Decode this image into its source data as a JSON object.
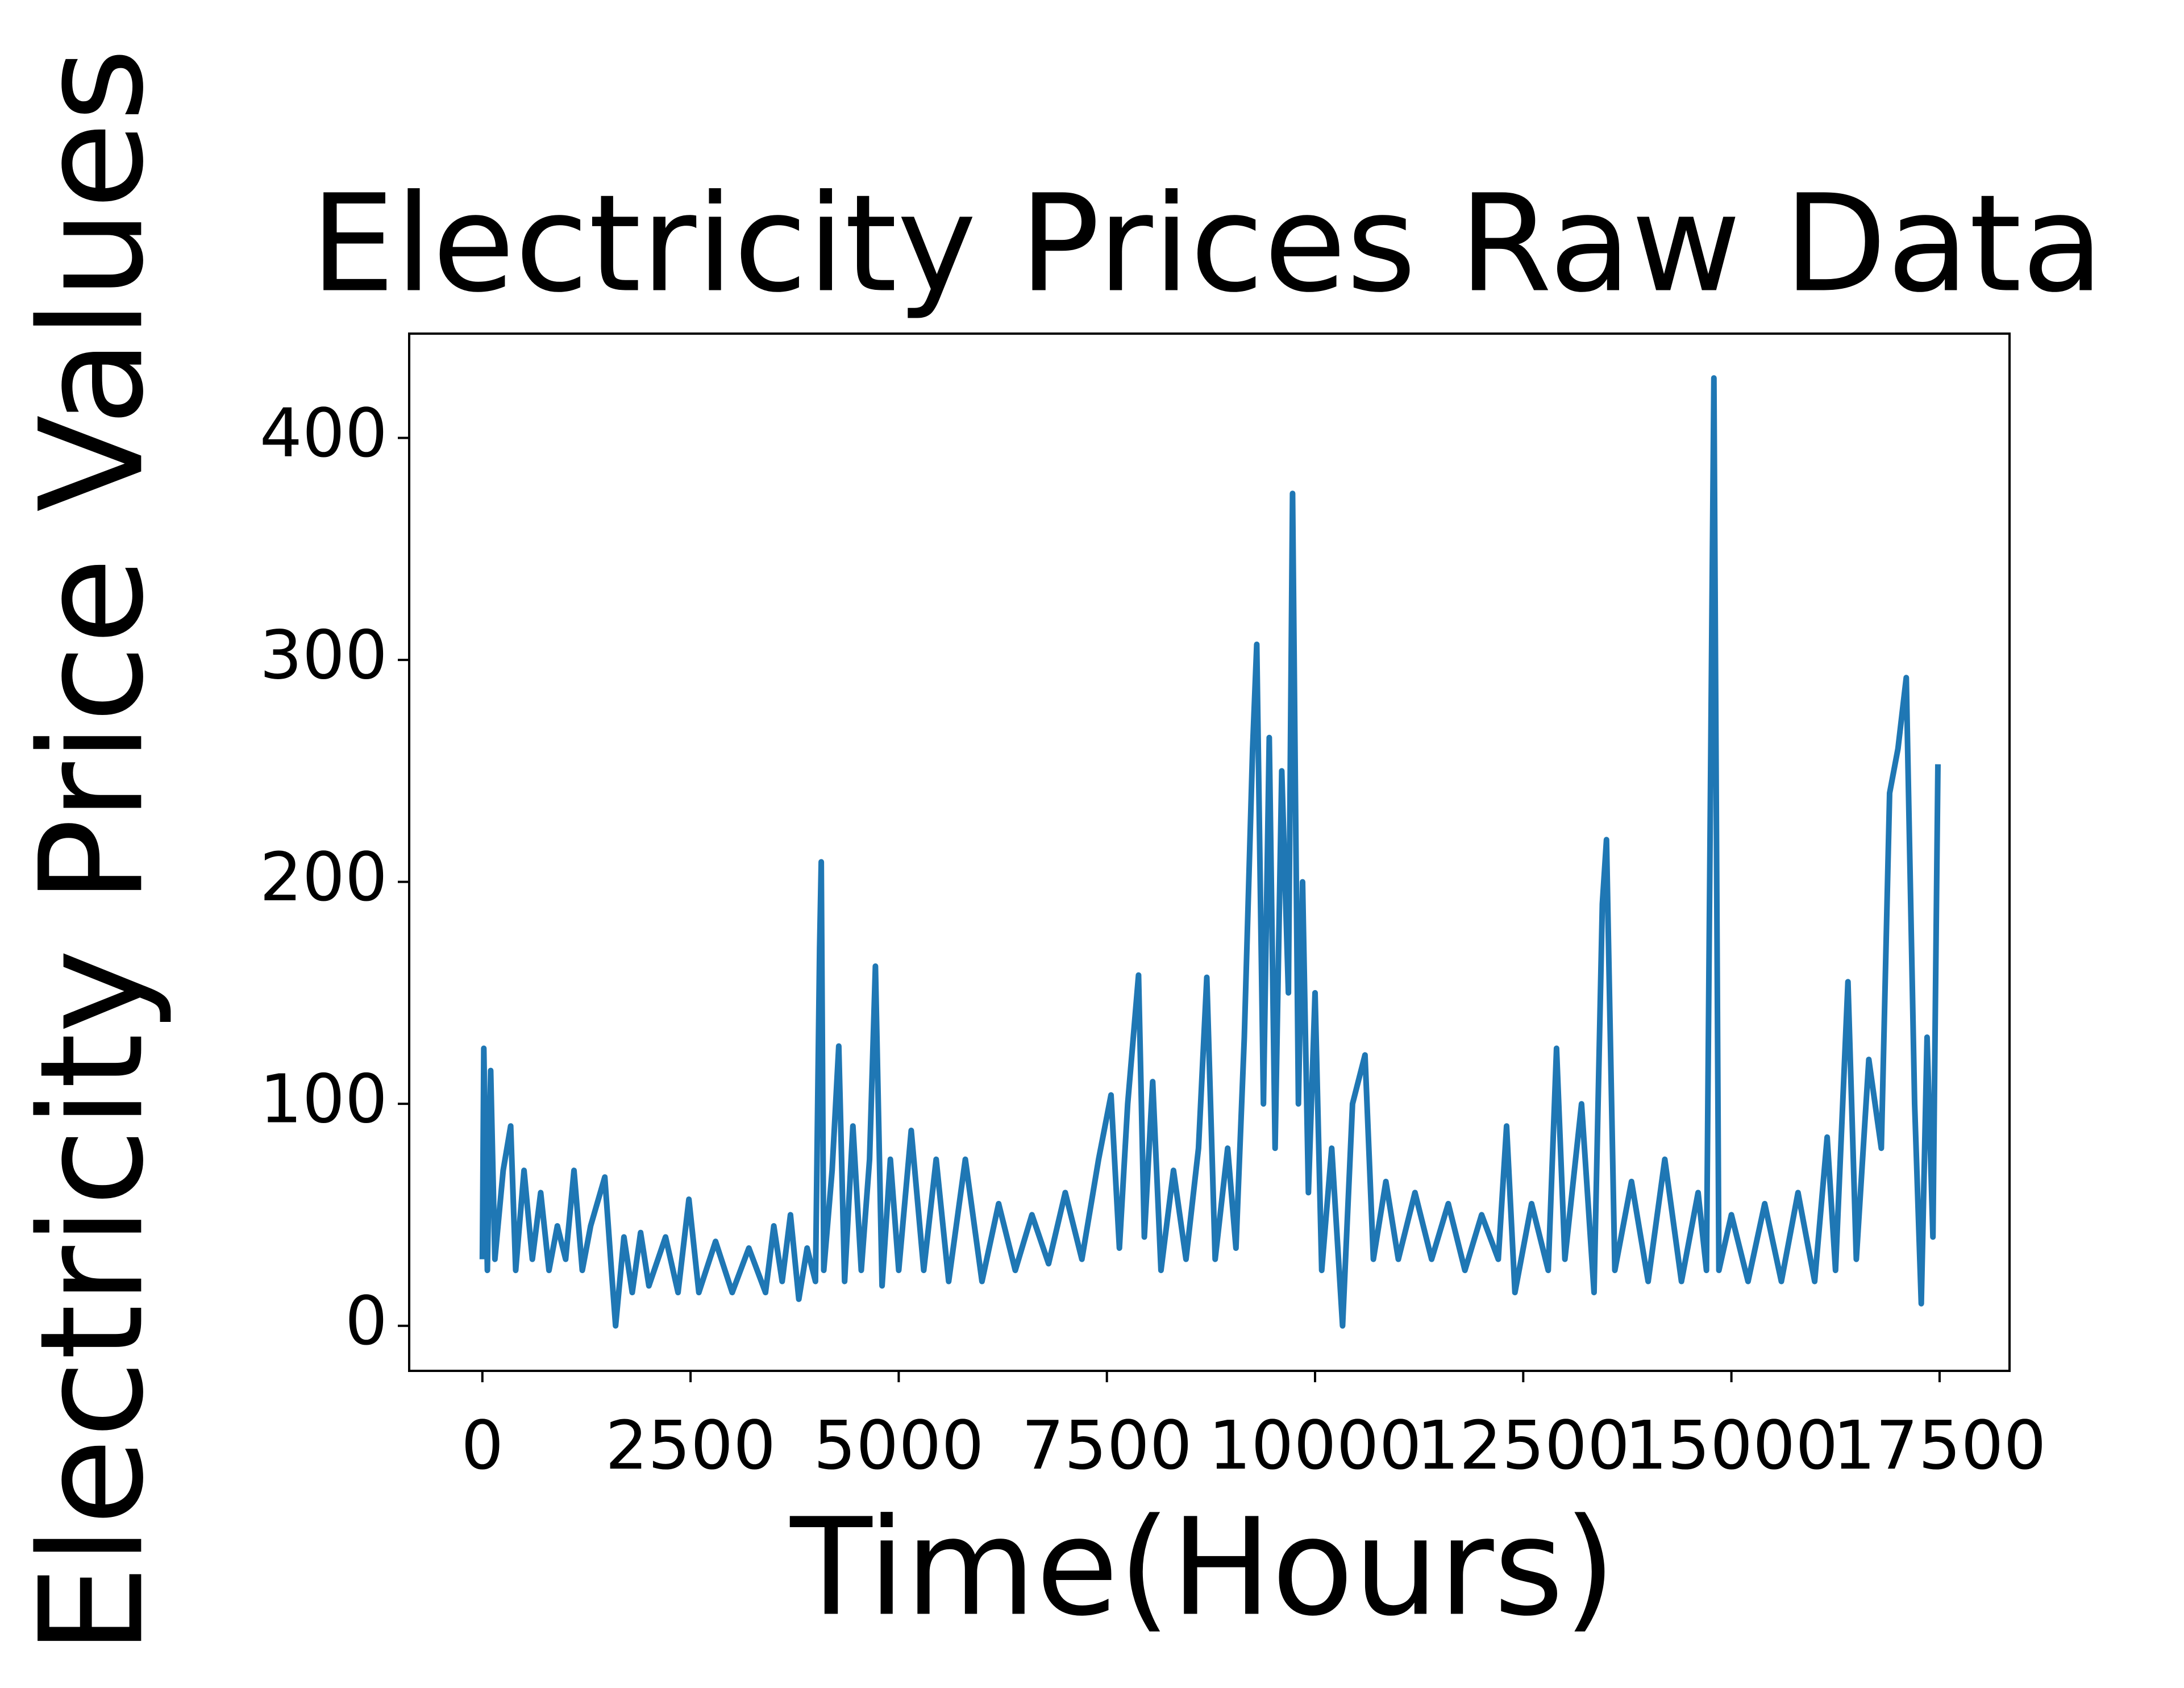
{
  "chart_data": {
    "type": "line",
    "title": "Electricity Prices Raw Data",
    "xlabel": "Time(Hours)",
    "ylabel": "Electricity Price Values",
    "color": "#1f77b4",
    "xlim": [
      -879,
      18340
    ],
    "ylim": [
      -20.3,
      447
    ],
    "xticks": [
      0,
      2500,
      5000,
      7500,
      10000,
      12500,
      15000,
      17500
    ],
    "yticks": [
      0,
      100,
      200,
      300,
      400
    ],
    "x": [
      0,
      17,
      60,
      100,
      150,
      250,
      340,
      400,
      500,
      600,
      700,
      800,
      900,
      1000,
      1100,
      1200,
      1300,
      1470,
      1550,
      1600,
      1700,
      1800,
      1900,
      2000,
      2200,
      2350,
      2480,
      2600,
      2800,
      3000,
      3200,
      3400,
      3500,
      3600,
      3700,
      3800,
      3900,
      4000,
      4050,
      4070,
      4100,
      4200,
      4280,
      4350,
      4450,
      4550,
      4650,
      4720,
      4800,
      4900,
      5000,
      5150,
      5300,
      5450,
      5600,
      5800,
      6000,
      6200,
      6400,
      6600,
      6800,
      7000,
      7200,
      7400,
      7550,
      7650,
      7750,
      7880,
      7950,
      8050,
      8150,
      8300,
      8450,
      8600,
      8700,
      8800,
      8950,
      9050,
      9150,
      9250,
      9300,
      9380,
      9450,
      9520,
      9600,
      9680,
      9730,
      9800,
      9850,
      9920,
      10000,
      10080,
      10200,
      10330,
      10450,
      10600,
      10700,
      10850,
      11000,
      11200,
      11400,
      11600,
      11800,
      12000,
      12200,
      12300,
      12400,
      12600,
      12800,
      12900,
      13000,
      13200,
      13350,
      13450,
      13500,
      13600,
      13800,
      14000,
      14200,
      14400,
      14600,
      14700,
      14790,
      14850,
      15000,
      15200,
      15400,
      15600,
      15800,
      16000,
      16150,
      16250,
      16400,
      16500,
      16650,
      16800,
      16900,
      17000,
      17100,
      17200,
      17280,
      17350,
      17420,
      17480
    ],
    "values": [
      30,
      125,
      25,
      115,
      30,
      70,
      90,
      25,
      70,
      30,
      60,
      25,
      45,
      30,
      70,
      25,
      45,
      67,
      25,
      0,
      40,
      15,
      42,
      18,
      40,
      15,
      57,
      15,
      38,
      15,
      35,
      15,
      45,
      20,
      50,
      12,
      35,
      20,
      170,
      209,
      25,
      70,
      126,
      20,
      90,
      25,
      75,
      162,
      18,
      75,
      25,
      88,
      25,
      75,
      20,
      75,
      20,
      55,
      25,
      50,
      28,
      60,
      30,
      75,
      104,
      35,
      100,
      158,
      40,
      110,
      25,
      70,
      30,
      80,
      157,
      30,
      80,
      35,
      130,
      260,
      307,
      100,
      265,
      80,
      250,
      150,
      375,
      100,
      200,
      60,
      150,
      25,
      80,
      0,
      100,
      122,
      30,
      65,
      30,
      60,
      30,
      55,
      25,
      50,
      30,
      90,
      15,
      55,
      25,
      125,
      30,
      100,
      15,
      190,
      219,
      25,
      65,
      20,
      75,
      20,
      60,
      25,
      427,
      25,
      50,
      20,
      55,
      20,
      60,
      20,
      85,
      25,
      155,
      30,
      120,
      80,
      240,
      260,
      292,
      100,
      10,
      130,
      40,
      253
    ]
  }
}
